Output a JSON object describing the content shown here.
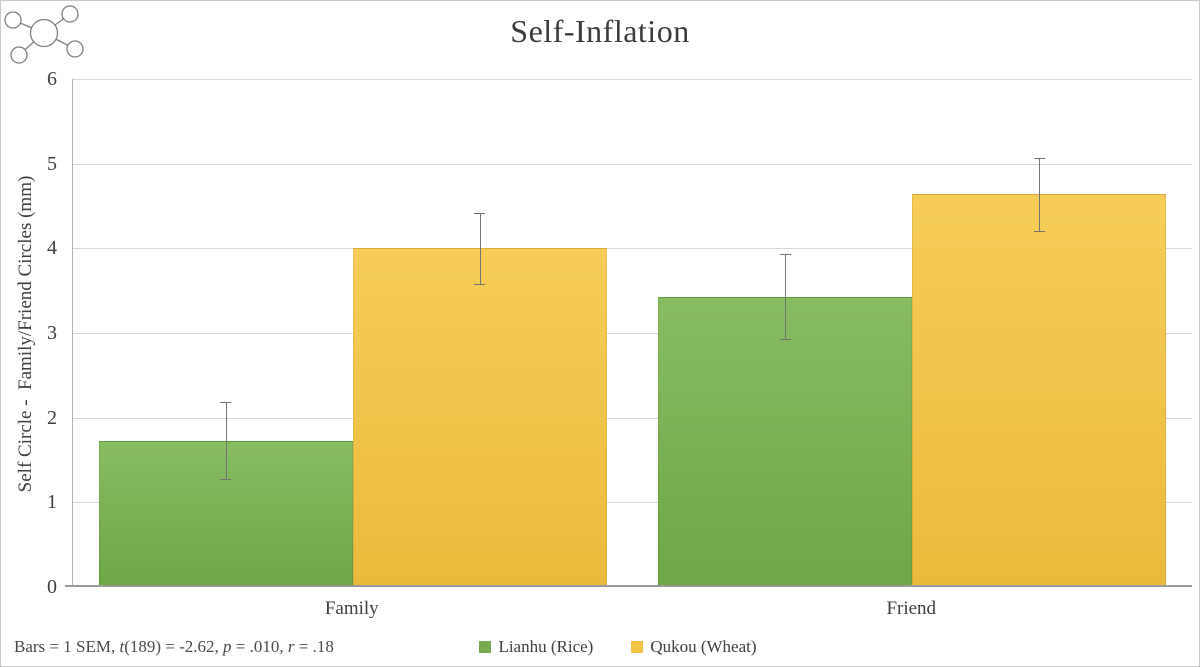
{
  "title": "Self-Inflation",
  "chart_data": {
    "type": "bar",
    "title": "Self-Inflation",
    "categories": [
      "Family",
      "Friend"
    ],
    "series": [
      {
        "name": "Lianhu (Rice)",
        "values": [
          1.73,
          3.43
        ],
        "sem": [
          0.46,
          0.5
        ],
        "color_top": "#87bc61",
        "color_bottom": "#6fa747",
        "legend_color": "#76ac4f"
      },
      {
        "name": "Qukou (Wheat)",
        "values": [
          4.0,
          4.64
        ],
        "sem": [
          0.42,
          0.43
        ],
        "color_top": "#f6cd57",
        "color_bottom": "#eaba3c",
        "legend_color": "#f2c445"
      }
    ],
    "xlabel": "",
    "ylabel": "Self Circle -  Family/Friend Circles (mm)",
    "ylim": [
      0,
      6
    ],
    "yticks": [
      0,
      1,
      2,
      3,
      4,
      5,
      6
    ],
    "grid": true,
    "legend_position": "bottom-center",
    "error_bars": "1 SEM"
  },
  "note": {
    "full": "Bars = 1 SEM, t(189) = -2.62, p = .010, r = .18",
    "segments": [
      {
        "text": "Bars = 1 SEM, ",
        "italic": false
      },
      {
        "text": "t",
        "italic": true
      },
      {
        "text": "(189) = -2.62, ",
        "italic": false
      },
      {
        "text": "p",
        "italic": true
      },
      {
        "text": " = .010, ",
        "italic": false
      },
      {
        "text": "r",
        "italic": true
      },
      {
        "text": " = .18",
        "italic": false
      }
    ]
  },
  "colors": {
    "title_text": "#3c3c3c",
    "axis_text": "#3f3f3f",
    "gridline": "#d9d9d9",
    "axis_line": "#9a9a9a",
    "error_bar": "#757575",
    "background": "#ffffff"
  },
  "logo": {
    "name": "network-diagram"
  }
}
